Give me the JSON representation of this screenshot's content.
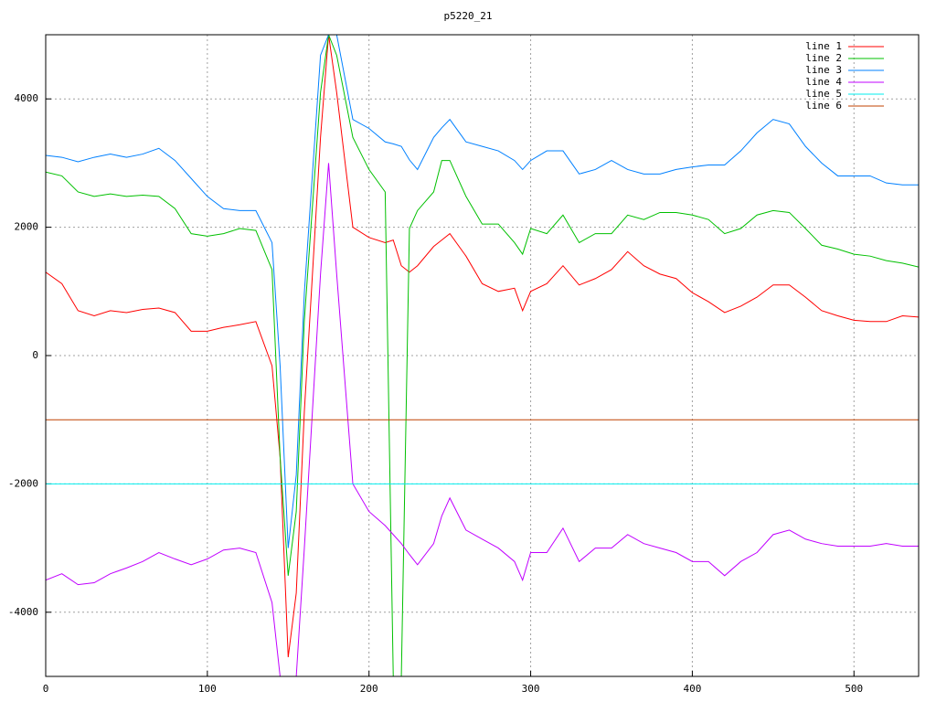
{
  "chart_data": {
    "type": "line",
    "title": "p5220_21",
    "x": [
      0,
      10,
      20,
      30,
      40,
      50,
      60,
      70,
      80,
      90,
      100,
      110,
      120,
      130,
      140,
      145,
      150,
      155,
      160,
      170,
      175,
      180,
      190,
      200,
      210,
      215,
      220,
      225,
      230,
      240,
      245,
      250,
      260,
      270,
      280,
      290,
      295,
      300,
      310,
      320,
      330,
      340,
      350,
      360,
      370,
      380,
      390,
      400,
      410,
      420,
      430,
      440,
      450,
      460,
      470,
      480,
      490,
      500,
      510,
      520,
      530,
      540
    ],
    "series": [
      {
        "name": "line 1",
        "color": "#ff0000",
        "values": [
          1300,
          1120,
          700,
          620,
          700,
          670,
          720,
          740,
          670,
          380,
          380,
          440,
          480,
          530,
          -160,
          -1580,
          -4700,
          -3700,
          -870,
          3400,
          5000,
          4100,
          2000,
          1840,
          1760,
          1800,
          1400,
          1300,
          1400,
          1700,
          1800,
          1900,
          1550,
          1120,
          1000,
          1050,
          700,
          1000,
          1120,
          1400,
          1100,
          1200,
          1340,
          1620,
          1400,
          1270,
          1200,
          980,
          840,
          670,
          770,
          910,
          1100,
          1100,
          910,
          700,
          620,
          550,
          530,
          530,
          620,
          600
        ]
      },
      {
        "name": "line 2",
        "color": "#00c000",
        "values": [
          2860,
          2800,
          2550,
          2480,
          2520,
          2480,
          2500,
          2480,
          2290,
          1900,
          1860,
          1900,
          1980,
          1950,
          1340,
          -1580,
          -3430,
          -2430,
          550,
          4100,
          5000,
          4680,
          3400,
          2900,
          2550,
          -5000,
          -5000,
          1980,
          2260,
          2550,
          3040,
          3040,
          2480,
          2050,
          2050,
          1760,
          1580,
          1980,
          1900,
          2190,
          1760,
          1900,
          1900,
          2190,
          2120,
          2230,
          2230,
          2190,
          2120,
          1900,
          1980,
          2190,
          2260,
          2230,
          1980,
          1720,
          1660,
          1580,
          1550,
          1480,
          1440,
          1380
        ]
      },
      {
        "name": "line 3",
        "color": "#0080ff",
        "values": [
          3120,
          3090,
          3020,
          3090,
          3140,
          3090,
          3140,
          3230,
          3040,
          2760,
          2480,
          2290,
          2260,
          2260,
          1760,
          -160,
          -3000,
          -1860,
          980,
          4680,
          5000,
          5000,
          3680,
          3540,
          3330,
          3300,
          3260,
          3050,
          2900,
          3400,
          3550,
          3680,
          3330,
          3260,
          3190,
          3040,
          2900,
          3040,
          3190,
          3190,
          2830,
          2900,
          3040,
          2900,
          2830,
          2830,
          2900,
          2940,
          2970,
          2970,
          3190,
          3470,
          3680,
          3610,
          3260,
          3000,
          2800,
          2800,
          2800,
          2690,
          2660,
          2660
        ]
      },
      {
        "name": "line 4",
        "color": "#c000ff",
        "values": [
          -3500,
          -3400,
          -3570,
          -3540,
          -3400,
          -3310,
          -3210,
          -3070,
          -3170,
          -3260,
          -3170,
          -3030,
          -3000,
          -3070,
          -3850,
          -5000,
          -5000,
          -5000,
          -3000,
          1270,
          3000,
          1270,
          -2000,
          -2430,
          -2650,
          -2790,
          -2930,
          -3100,
          -3260,
          -2930,
          -2500,
          -2220,
          -2720,
          -2860,
          -3000,
          -3210,
          -3500,
          -3070,
          -3070,
          -2690,
          -3210,
          -3000,
          -3000,
          -2790,
          -2930,
          -3000,
          -3070,
          -3210,
          -3210,
          -3430,
          -3210,
          -3070,
          -2790,
          -2720,
          -2860,
          -2930,
          -2970,
          -2970,
          -2970,
          -2930,
          -2970,
          -2970
        ]
      },
      {
        "name": "line 5",
        "color": "#00eeee",
        "x": [
          0,
          540
        ],
        "values": [
          -2000,
          -2000
        ]
      },
      {
        "name": "line 6",
        "color": "#c04000",
        "x": [
          0,
          540
        ],
        "values": [
          -1000,
          -1000
        ]
      }
    ],
    "xlim": [
      0,
      540
    ],
    "xticks": [
      0,
      100,
      200,
      300,
      400,
      500
    ],
    "ylim": [
      -5000,
      5000
    ],
    "yticks": [
      -4000,
      -2000,
      0,
      2000,
      4000
    ],
    "grid": true,
    "legend": "top-right"
  }
}
